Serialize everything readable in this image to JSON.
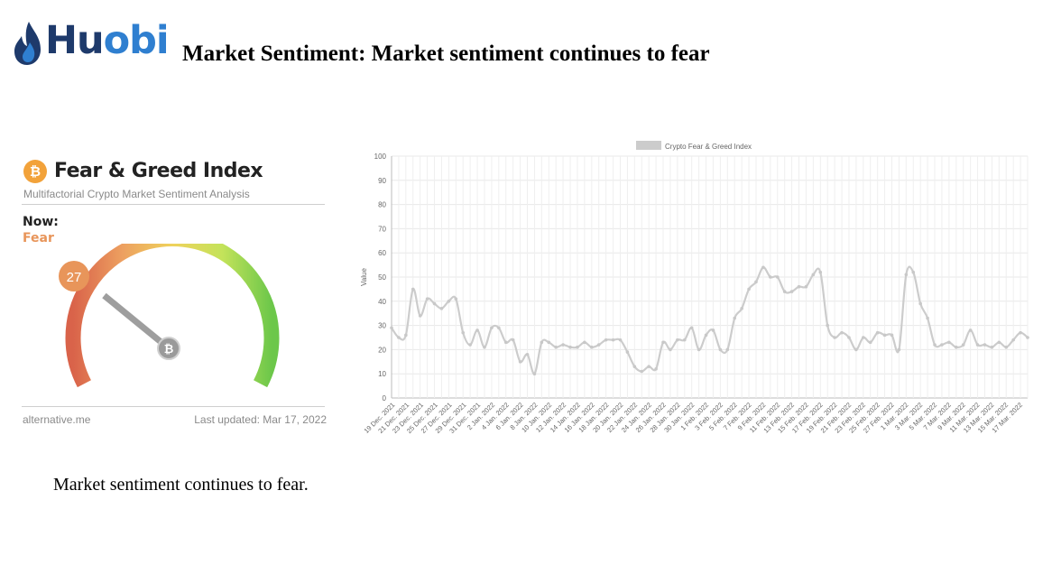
{
  "logo": {
    "prefix": "Hu",
    "highlight": "obi"
  },
  "slide_title": "Market Sentiment: Market sentiment continues to fear",
  "fear_greed": {
    "title": "Fear & Greed Index",
    "subtitle": "Multifactorial Crypto Market Sentiment Analysis",
    "now_label": "Now:",
    "now_value": "Fear",
    "score": "27",
    "score_value": 27,
    "source": "alternative.me",
    "last_updated": "Last updated: Mar 17, 2022",
    "btc_symbol": "₿",
    "colors": {
      "fear": "#e8955a",
      "extreme_fear": "#d9534f",
      "greed": "#6cc04a",
      "neutral": "#e4d65a"
    }
  },
  "chart_data": {
    "type": "line",
    "legend": "Crypto Fear & Greed Index",
    "legend_position": "top-center",
    "ylabel": "Value",
    "ylim": [
      0,
      100
    ],
    "yticks": [
      0,
      10,
      20,
      30,
      40,
      50,
      60,
      70,
      80,
      90,
      100
    ],
    "grid": true,
    "line_color": "#cccccc",
    "tick_labels": [
      "19 Dec. 2021",
      "21 Dec. 2021",
      "23 Dec. 2021",
      "25 Dec. 2021",
      "27 Dec. 2021",
      "29 Dec. 2021",
      "31 Dec. 2021",
      "2 Jan. 2022",
      "4 Jan. 2022",
      "6 Jan. 2022",
      "8 Jan. 2022",
      "10 Jan. 2022",
      "12 Jan. 2022",
      "14 Jan. 2022",
      "16 Jan. 2022",
      "18 Jan. 2022",
      "20 Jan. 2022",
      "22 Jan. 2022",
      "24 Jan. 2022",
      "26 Jan. 2022",
      "28 Jan. 2022",
      "30 Jan. 2022",
      "1 Feb. 2022",
      "3 Feb. 2022",
      "5 Feb. 2022",
      "7 Feb. 2022",
      "9 Feb. 2022",
      "11 Feb. 2022",
      "13 Feb. 2022",
      "15 Feb. 2022",
      "17 Feb. 2022",
      "19 Feb. 2022",
      "21 Feb. 2022",
      "23 Feb. 2022",
      "25 Feb. 2022",
      "27 Feb. 2022",
      "1 Mar. 2022",
      "3 Mar. 2022",
      "5 Mar. 2022",
      "7 Mar. 2022",
      "9 Mar. 2022",
      "11 Mar. 2022",
      "13 Mar. 2022",
      "15 Mar. 2022",
      "17 Mar. 2022"
    ],
    "x_range": [
      "19 Dec. 2021",
      "18 Mar. 2022"
    ],
    "values": [
      29,
      25,
      26,
      45,
      34,
      41,
      39,
      37,
      40,
      41,
      27,
      22,
      28,
      21,
      29,
      29,
      23,
      24,
      15,
      18,
      10,
      23,
      23,
      21,
      22,
      21,
      21,
      23,
      21,
      22,
      24,
      24,
      24,
      19,
      13,
      11,
      13,
      12,
      23,
      20,
      24,
      24,
      29,
      20,
      26,
      28,
      20,
      20,
      33,
      37,
      45,
      48,
      54,
      50,
      50,
      44,
      44,
      46,
      46,
      51,
      52,
      30,
      25,
      27,
      25,
      20,
      25,
      23,
      27,
      26,
      26,
      20,
      51,
      52,
      39,
      33,
      22,
      22,
      23,
      21,
      22,
      28,
      22,
      22,
      21,
      23,
      21,
      24,
      27,
      25
    ]
  },
  "body_text": "Market sentiment continues to fear."
}
